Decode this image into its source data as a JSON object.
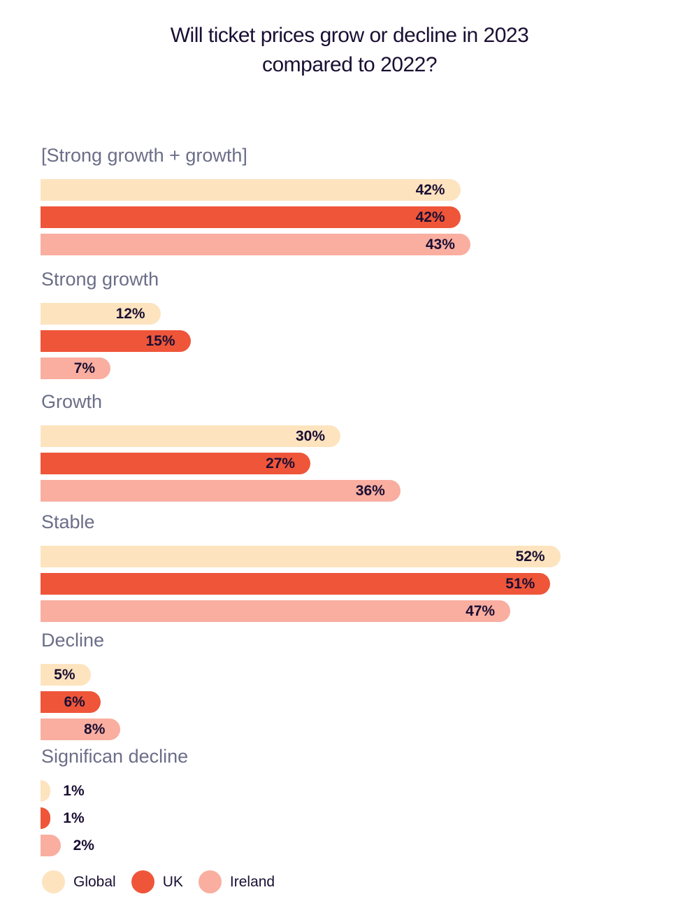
{
  "chart_data": {
    "type": "bar",
    "orientation": "horizontal",
    "title": "Will ticket prices grow or decline in 2023 compared to 2022?",
    "title_lines": [
      "Will ticket prices grow or decline in 2023",
      "compared to 2022?"
    ],
    "xlabel": "",
    "ylabel": "",
    "unit": "%",
    "xlim": [
      0,
      100
    ],
    "grid": false,
    "legend_position": "bottom-left",
    "categories": [
      "[Strong growth + growth]",
      "Strong growth",
      "Growth",
      "Stable",
      "Decline",
      "Significan decline"
    ],
    "series": [
      {
        "name": "Global",
        "color": "#fde4bf",
        "values": [
          42,
          12,
          30,
          52,
          5,
          1
        ],
        "labels": [
          "42%",
          "12%",
          "30%",
          "52%",
          "5%",
          "1%"
        ]
      },
      {
        "name": "UK",
        "color": "#ef5539",
        "values": [
          42,
          15,
          27,
          51,
          6,
          1
        ],
        "labels": [
          "42%",
          "15%",
          "27%",
          "51%",
          "6%",
          "1%"
        ]
      },
      {
        "name": "Ireland",
        "color": "#f9aea0",
        "values": [
          43,
          7,
          36,
          47,
          8,
          2
        ],
        "labels": [
          "43%",
          "7%",
          "36%",
          "47%",
          "8%",
          "2%"
        ]
      }
    ]
  }
}
